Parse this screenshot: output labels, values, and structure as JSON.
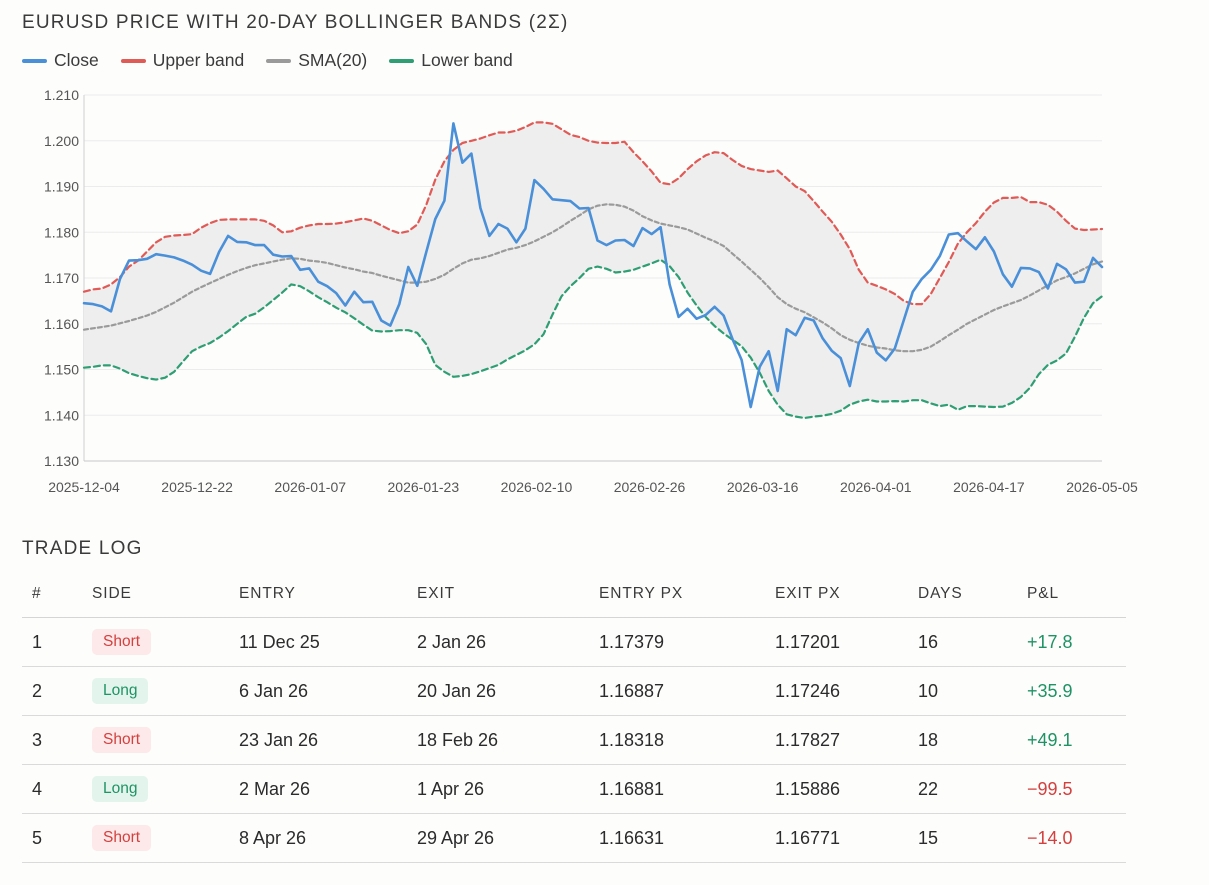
{
  "chart_data": {
    "type": "line",
    "title": "EURUSD PRICE WITH 20-DAY BOLLINGER BANDS (2Σ)",
    "xlabel": "",
    "ylabel": "",
    "ylim": [
      1.13,
      1.21
    ],
    "yticks": [
      "1.210",
      "1.200",
      "1.190",
      "1.180",
      "1.170",
      "1.160",
      "1.150",
      "1.140",
      "1.130"
    ],
    "xtick_labels": [
      "2025-12-04",
      "2025-12-22",
      "2026-01-07",
      "2026-01-23",
      "2026-02-10",
      "2026-02-26",
      "2026-03-16",
      "2026-04-01",
      "2026-04-17",
      "2026-05-05"
    ],
    "grid": true,
    "legend_position": "top-left",
    "band_fill_color": "#eeeeee",
    "series": [
      {
        "name": "Close",
        "color": "#4a90d9",
        "dash": "",
        "values": [
          1.1645,
          1.1643,
          1.1638,
          1.1627,
          1.1698,
          1.1738,
          1.1739,
          1.1742,
          1.1752,
          1.1749,
          1.1745,
          1.1738,
          1.1729,
          1.1716,
          1.1709,
          1.1757,
          1.1792,
          1.1779,
          1.1778,
          1.1772,
          1.1772,
          1.1751,
          1.1747,
          1.1748,
          1.1718,
          1.1721,
          1.1692,
          1.1682,
          1.1667,
          1.164,
          1.167,
          1.1647,
          1.1648,
          1.1607,
          1.1596,
          1.1643,
          1.1724,
          1.1683,
          1.1757,
          1.1829,
          1.1869,
          1.2038,
          1.1952,
          1.1972,
          1.1853,
          1.1792,
          1.1818,
          1.1808,
          1.1778,
          1.1808,
          1.1914,
          1.1895,
          1.1872,
          1.187,
          1.1868,
          1.1852,
          1.1853,
          1.1782,
          1.1772,
          1.1782,
          1.1783,
          1.177,
          1.1809,
          1.1796,
          1.1811,
          1.1686,
          1.1615,
          1.1633,
          1.1611,
          1.1619,
          1.1637,
          1.1618,
          1.1566,
          1.1521,
          1.1418,
          1.1506,
          1.154,
          1.1453,
          1.1588,
          1.1575,
          1.1613,
          1.1607,
          1.1568,
          1.1541,
          1.1525,
          1.1464,
          1.1558,
          1.1588,
          1.1537,
          1.152,
          1.1546,
          1.1608,
          1.167,
          1.1698,
          1.1718,
          1.1748,
          1.1795,
          1.1798,
          1.178,
          1.1763,
          1.1789,
          1.1758,
          1.1708,
          1.1681,
          1.1722,
          1.1721,
          1.1713,
          1.1677,
          1.1731,
          1.1719,
          1.169,
          1.1692,
          1.1744,
          1.1724
        ]
      },
      {
        "name": "Upper band",
        "color": "#e05a56",
        "dash": "6 4",
        "values": [
          1.167,
          1.1675,
          1.1677,
          1.1686,
          1.1702,
          1.1725,
          1.1738,
          1.1758,
          1.1778,
          1.179,
          1.1793,
          1.1794,
          1.1796,
          1.181,
          1.182,
          1.1827,
          1.1828,
          1.1828,
          1.1828,
          1.1828,
          1.1825,
          1.1815,
          1.18,
          1.1802,
          1.181,
          1.1815,
          1.1818,
          1.1818,
          1.1819,
          1.1822,
          1.1826,
          1.183,
          1.1825,
          1.1815,
          1.1805,
          1.1798,
          1.1802,
          1.1817,
          1.186,
          1.1915,
          1.1955,
          1.198,
          1.1995,
          1.2,
          1.2005,
          1.2012,
          1.2018,
          1.2018,
          1.2022,
          1.203,
          1.204,
          1.204,
          1.2037,
          1.2025,
          1.2013,
          1.2008,
          1.2,
          1.1996,
          1.1995,
          1.1995,
          1.1998,
          1.1975,
          1.1955,
          1.1933,
          1.1908,
          1.1905,
          1.1918,
          1.1938,
          1.1955,
          1.1968,
          1.1975,
          1.1973,
          1.1958,
          1.1945,
          1.1938,
          1.1935,
          1.1932,
          1.1935,
          1.1918,
          1.19,
          1.189,
          1.1868,
          1.1845,
          1.1823,
          1.1795,
          1.1763,
          1.1718,
          1.169,
          1.1683,
          1.1675,
          1.1665,
          1.165,
          1.1643,
          1.1643,
          1.1665,
          1.17,
          1.1735,
          1.1775,
          1.18,
          1.182,
          1.1845,
          1.1865,
          1.1875,
          1.1875,
          1.1877,
          1.1866,
          1.1866,
          1.186,
          1.1845,
          1.1825,
          1.1808,
          1.1805,
          1.1806,
          1.1807
        ]
      },
      {
        "name": "SMA(20)",
        "color": "#9a9a9a",
        "dash": "4 3",
        "values": [
          1.1587,
          1.159,
          1.1593,
          1.1596,
          1.1601,
          1.1606,
          1.1612,
          1.1618,
          1.1626,
          1.1636,
          1.1646,
          1.1658,
          1.167,
          1.168,
          1.1689,
          1.1698,
          1.1707,
          1.1715,
          1.1722,
          1.1728,
          1.1732,
          1.1736,
          1.174,
          1.1743,
          1.1742,
          1.1738,
          1.1736,
          1.1733,
          1.1728,
          1.1723,
          1.1719,
          1.1714,
          1.1711,
          1.1705,
          1.17,
          1.1695,
          1.169,
          1.169,
          1.1692,
          1.1698,
          1.1707,
          1.172,
          1.1732,
          1.174,
          1.1743,
          1.1748,
          1.1755,
          1.1762,
          1.1766,
          1.1772,
          1.178,
          1.179,
          1.18,
          1.1812,
          1.1825,
          1.1837,
          1.185,
          1.1858,
          1.1861,
          1.186,
          1.1856,
          1.1847,
          1.1835,
          1.1826,
          1.1819,
          1.1815,
          1.1811,
          1.1806,
          1.1797,
          1.1788,
          1.178,
          1.177,
          1.1753,
          1.1736,
          1.1718,
          1.17,
          1.168,
          1.1658,
          1.1643,
          1.1633,
          1.1625,
          1.1614,
          1.1603,
          1.159,
          1.1575,
          1.1565,
          1.1558,
          1.1552,
          1.1548,
          1.1546,
          1.1542,
          1.154,
          1.154,
          1.1543,
          1.155,
          1.1562,
          1.1575,
          1.1587,
          1.16,
          1.161,
          1.162,
          1.163,
          1.1638,
          1.1645,
          1.1652,
          1.1662,
          1.1673,
          1.1684,
          1.1695,
          1.1702,
          1.171,
          1.172,
          1.173,
          1.1736
        ]
      },
      {
        "name": "Lower band",
        "color": "#2e9e74",
        "dash": "6 4",
        "values": [
          1.1504,
          1.1506,
          1.1509,
          1.1509,
          1.1502,
          1.1492,
          1.1486,
          1.1481,
          1.1478,
          1.1482,
          1.1495,
          1.1518,
          1.154,
          1.155,
          1.1558,
          1.157,
          1.1584,
          1.16,
          1.1615,
          1.1622,
          1.1636,
          1.1652,
          1.1668,
          1.1686,
          1.1682,
          1.1671,
          1.1658,
          1.1647,
          1.1635,
          1.1625,
          1.1612,
          1.1598,
          1.1585,
          1.1583,
          1.1584,
          1.1586,
          1.1586,
          1.158,
          1.1555,
          1.151,
          1.1495,
          1.1484,
          1.1486,
          1.149,
          1.1496,
          1.1503,
          1.151,
          1.1522,
          1.1532,
          1.1542,
          1.1555,
          1.1577,
          1.162,
          1.166,
          1.1682,
          1.17,
          1.172,
          1.1725,
          1.172,
          1.1712,
          1.1714,
          1.1718,
          1.1725,
          1.1732,
          1.174,
          1.1726,
          1.1702,
          1.1668,
          1.164,
          1.1615,
          1.1595,
          1.1579,
          1.1565,
          1.1551,
          1.1526,
          1.1493,
          1.1453,
          1.1423,
          1.1402,
          1.1397,
          1.1394,
          1.1397,
          1.1399,
          1.1403,
          1.141,
          1.1423,
          1.143,
          1.1434,
          1.143,
          1.143,
          1.1431,
          1.143,
          1.1433,
          1.1433,
          1.1426,
          1.142,
          1.1423,
          1.1412,
          1.142,
          1.142,
          1.1419,
          1.1418,
          1.1419,
          1.1427,
          1.144,
          1.146,
          1.149,
          1.151,
          1.152,
          1.1535,
          1.1572,
          1.1613,
          1.1645,
          1.166
        ]
      }
    ]
  },
  "legend": [
    {
      "label": "Close",
      "color": "#4a90d9"
    },
    {
      "label": "Upper band",
      "color": "#e05a56"
    },
    {
      "label": "SMA(20)",
      "color": "#9a9a9a"
    },
    {
      "label": "Lower band",
      "color": "#2e9e74"
    }
  ],
  "trade_log": {
    "title": "TRADE LOG",
    "headers": [
      "#",
      "SIDE",
      "ENTRY",
      "EXIT",
      "ENTRY PX",
      "EXIT PX",
      "DAYS",
      "P&L"
    ],
    "rows": [
      {
        "num": "1",
        "side": "Short",
        "entry": "11 Dec 25",
        "exit": "2 Jan 26",
        "entry_px": "1.17379",
        "exit_px": "1.17201",
        "days": "16",
        "pnl": "+17.8"
      },
      {
        "num": "2",
        "side": "Long",
        "entry": "6 Jan 26",
        "exit": "20 Jan 26",
        "entry_px": "1.16887",
        "exit_px": "1.17246",
        "days": "10",
        "pnl": "+35.9"
      },
      {
        "num": "3",
        "side": "Short",
        "entry": "23 Jan 26",
        "exit": "18 Feb 26",
        "entry_px": "1.18318",
        "exit_px": "1.17827",
        "days": "18",
        "pnl": "+49.1"
      },
      {
        "num": "4",
        "side": "Long",
        "entry": "2 Mar 26",
        "exit": "1 Apr 26",
        "entry_px": "1.16881",
        "exit_px": "1.15886",
        "days": "22",
        "pnl": "−99.5"
      },
      {
        "num": "5",
        "side": "Short",
        "entry": "8 Apr 26",
        "exit": "29 Apr 26",
        "entry_px": "1.16631",
        "exit_px": "1.16771",
        "days": "15",
        "pnl": "−14.0"
      }
    ]
  }
}
